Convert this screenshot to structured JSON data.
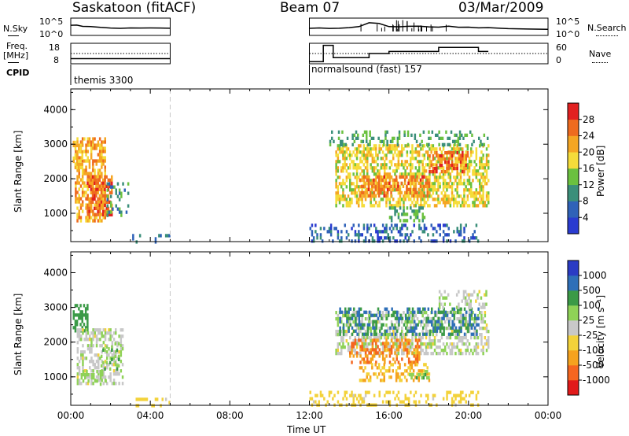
{
  "header": {
    "station": "Saskatoon (fitACF)",
    "beam": "Beam 07",
    "date": "03/Mar/2009"
  },
  "sidebar_left": {
    "nsky_label": "N.Sky",
    "freq_label_line1": "Freq.",
    "freq_label_line2": "[MHz]",
    "cpid_label": "CPID"
  },
  "sidebar_right": {
    "nsearch_label": "N.Search",
    "nave_label": "Nave"
  },
  "noise_axis": {
    "top": "10^5",
    "bottom": "10^0"
  },
  "freq_axis": {
    "left_top": "18",
    "left_bottom": "8",
    "right_top": "60",
    "right_bottom": "0"
  },
  "cpid": {
    "segment1": "themis 3300",
    "segment2": "normalsound (fast) 157"
  },
  "time_axis": {
    "title": "Time UT",
    "ticks": [
      "00:00",
      "04:00",
      "08:00",
      "12:00",
      "16:00",
      "20:00",
      "00:00"
    ]
  },
  "power_panel": {
    "ylabel": "Slant Range [km]",
    "yticks": [
      "1000",
      "2000",
      "3000",
      "4000"
    ],
    "colorbar_title": "Power [dB]",
    "colorbar_ticks": [
      "4",
      "8",
      "12",
      "16",
      "20",
      "24",
      "28"
    ]
  },
  "velocity_panel": {
    "ylabel": "Slant Range [km]",
    "yticks": [
      "1000",
      "2000",
      "3000",
      "4000"
    ],
    "colorbar_title": "Velocity [m s⁻¹]",
    "colorbar_ticks": [
      "-1000",
      "-500",
      "-100",
      "-25",
      "25",
      "100",
      "500",
      "1000"
    ]
  },
  "chart_data": [
    {
      "type": "line",
      "title": "N.Sky / N.Search",
      "x_unit": "hours UT",
      "xlim": [
        0,
        24
      ],
      "ylim_log10": [
        0,
        5
      ],
      "series": [
        {
          "name": "N.Sky",
          "x": [
            0.0,
            0.3,
            0.6,
            1.0,
            1.5,
            2.0,
            2.5,
            3.0,
            3.5,
            4.0,
            4.5,
            5.0
          ],
          "log10_values": [
            2.9,
            3.0,
            2.6,
            2.5,
            2.3,
            2.1,
            2.1,
            2.1,
            2.1,
            2.1,
            2.1,
            2.1
          ]
        },
        {
          "name": "N.Sky",
          "x": [
            12.0,
            12.5,
            13.0,
            13.5,
            14.0,
            14.5,
            15.0,
            15.5,
            16.0,
            16.5,
            17.0,
            17.5,
            18.0,
            18.5,
            19.0,
            19.5,
            20.0,
            20.5,
            21.0,
            22.0,
            23.0,
            24.0
          ],
          "log10_values": [
            2.0,
            2.2,
            2.0,
            2.1,
            2.3,
            2.5,
            3.6,
            3.4,
            2.6,
            2.5,
            2.6,
            2.7,
            2.5,
            2.4,
            2.6,
            2.3,
            2.4,
            2.2,
            2.2,
            2.0,
            1.9,
            1.8
          ]
        }
      ]
    },
    {
      "type": "line",
      "title": "Freq / Nave",
      "x_unit": "hours UT",
      "xlim": [
        0,
        24
      ],
      "freq_ylim_MHz": [
        8,
        18
      ],
      "nave_ylim": [
        0,
        60
      ],
      "series": [
        {
          "name": "Freq",
          "x": [
            0.0,
            5.0
          ],
          "values": [
            10.5,
            10.5
          ]
        },
        {
          "name": "Freq",
          "x": [
            12.0,
            12.7,
            12.7,
            13.2,
            13.2,
            15.0,
            15.0,
            16.0,
            16.0,
            18.5,
            18.5,
            20.5,
            20.5,
            21.0
          ],
          "values": [
            9.0,
            9.0,
            17.0,
            17.0,
            11.0,
            11.0,
            13.0,
            13.0,
            14.0,
            14.0,
            16.0,
            16.0,
            14.0,
            14.0
          ]
        },
        {
          "name": "Nave",
          "x": [
            0,
            5,
            12,
            24
          ],
          "values": [
            30,
            30,
            30,
            30
          ]
        }
      ]
    },
    {
      "type": "heatmap",
      "title": "Power [dB]",
      "x_unit": "hours UT",
      "xlim": [
        0,
        24
      ],
      "ylim_km": [
        180,
        4600
      ],
      "clim": [
        0,
        32
      ],
      "regions": [
        {
          "t": [
            0.2,
            1.7
          ],
          "r": [
            800,
            3200
          ],
          "v": 22,
          "density": 0.55
        },
        {
          "t": [
            0.8,
            2.1
          ],
          "r": [
            1000,
            2100
          ],
          "v": 26,
          "density": 0.6
        },
        {
          "t": [
            0.1,
            0.6
          ],
          "r": [
            2300,
            3100
          ],
          "v": 20,
          "density": 0.6
        },
        {
          "t": [
            1.8,
            2.9
          ],
          "r": [
            900,
            1900
          ],
          "v": 10,
          "density": 0.25
        },
        {
          "t": [
            3.0,
            5.0
          ],
          "r": [
            200,
            400
          ],
          "v": 8,
          "density": 0.25
        },
        {
          "t": [
            13.3,
            21.0
          ],
          "r": [
            1200,
            3000
          ],
          "v": 18,
          "density": 0.55
        },
        {
          "t": [
            14.5,
            18.0
          ],
          "r": [
            1500,
            2100
          ],
          "v": 25,
          "density": 0.5
        },
        {
          "t": [
            18.0,
            20.0
          ],
          "r": [
            2200,
            2800
          ],
          "v": 26,
          "density": 0.5
        },
        {
          "t": [
            16.0,
            17.8
          ],
          "r": [
            800,
            1200
          ],
          "v": 12,
          "density": 0.4
        },
        {
          "t": [
            13.0,
            21.0
          ],
          "r": [
            3000,
            3400
          ],
          "v": 12,
          "density": 0.25
        },
        {
          "t": [
            12.0,
            20.5
          ],
          "r": [
            200,
            700
          ],
          "v": 6,
          "density": 0.3
        }
      ]
    },
    {
      "type": "heatmap",
      "title": "Velocity [m s^-1]",
      "x_unit": "hours UT",
      "xlim": [
        0,
        24
      ],
      "ylim_km": [
        180,
        4600
      ],
      "clim": [
        -1000,
        1000
      ],
      "regions": [
        {
          "t": [
            0.1,
            0.8
          ],
          "r": [
            2300,
            3100
          ],
          "v": 300,
          "density": 0.5
        },
        {
          "t": [
            0.3,
            2.6
          ],
          "r": [
            800,
            2400
          ],
          "v": 10,
          "density": 0.45
        },
        {
          "t": [
            0.5,
            1.8
          ],
          "r": [
            800,
            1200
          ],
          "v": 60,
          "density": 0.4
        },
        {
          "t": [
            1.5,
            2.4
          ],
          "r": [
            1200,
            2000
          ],
          "v": 80,
          "density": 0.35
        },
        {
          "t": [
            3.0,
            5.0
          ],
          "r": [
            200,
            400
          ],
          "v": -60,
          "density": 0.25
        },
        {
          "t": [
            13.3,
            21.0
          ],
          "r": [
            1700,
            2900
          ],
          "v": 10,
          "density": 0.5
        },
        {
          "t": [
            14.0,
            17.5
          ],
          "r": [
            1400,
            2100
          ],
          "v": -500,
          "density": 0.45
        },
        {
          "t": [
            13.5,
            20.5
          ],
          "r": [
            2200,
            3000
          ],
          "v": 500,
          "density": 0.35
        },
        {
          "t": [
            14.5,
            18.0
          ],
          "r": [
            900,
            1400
          ],
          "v": -100,
          "density": 0.35
        },
        {
          "t": [
            17.0,
            18.0
          ],
          "r": [
            1000,
            1200
          ],
          "v": 80,
          "density": 0.4
        },
        {
          "t": [
            12.0,
            20.5
          ],
          "r": [
            200,
            600
          ],
          "v": -60,
          "density": 0.3
        },
        {
          "t": [
            18.5,
            21.0
          ],
          "r": [
            3000,
            3500
          ],
          "v": 10,
          "density": 0.3
        }
      ]
    }
  ],
  "colors": {
    "power_scale": [
      "#2a3bd0",
      "#2f62b8",
      "#3b8f7a",
      "#6bc13f",
      "#f5dc3a",
      "#f5a623",
      "#ee6b1f",
      "#e12020"
    ],
    "velocity_scale": [
      "#e11a1a",
      "#f5661f",
      "#f5a21e",
      "#f3d23a",
      "#c8c8c8",
      "#8fd257",
      "#3b9a47",
      "#2e6fb8",
      "#2a3bc4"
    ]
  }
}
